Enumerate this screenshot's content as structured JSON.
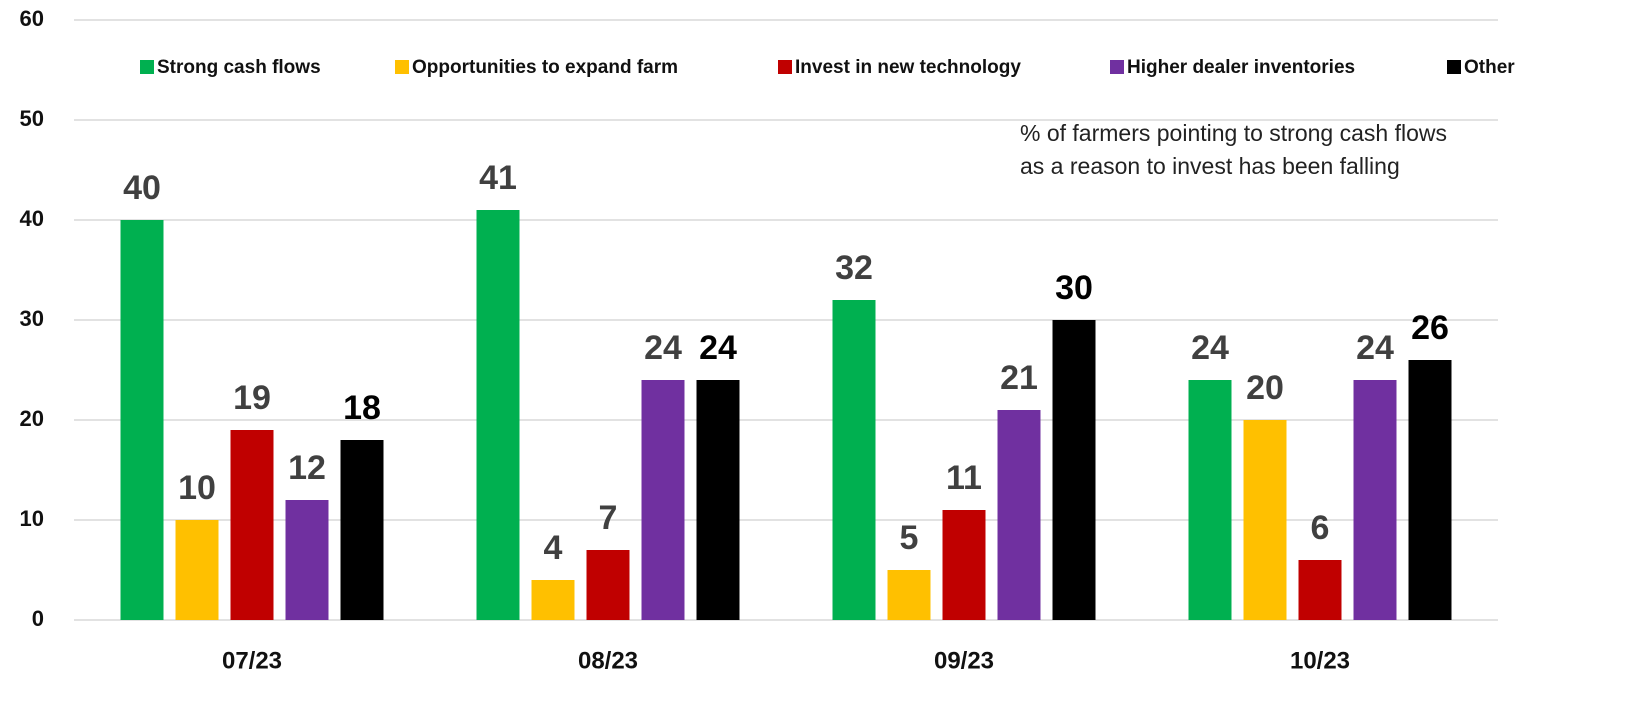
{
  "chart_data": {
    "type": "bar",
    "categories": [
      "07/23",
      "08/23",
      "09/23",
      "10/23"
    ],
    "series": [
      {
        "name": "Strong cash flows",
        "color": "#00b050",
        "label_color": "#404040",
        "values": [
          40,
          41,
          32,
          24
        ]
      },
      {
        "name": "Opportunities to expand farm",
        "color": "#ffc000",
        "label_color": "#404040",
        "values": [
          10,
          4,
          5,
          20
        ]
      },
      {
        "name": "Invest in new technology",
        "color": "#c00000",
        "label_color": "#404040",
        "values": [
          19,
          7,
          11,
          6
        ]
      },
      {
        "name": "Higher dealer inventories",
        "color": "#7030a0",
        "label_color": "#404040",
        "values": [
          12,
          24,
          21,
          24
        ]
      },
      {
        "name": "Other",
        "color": "#000000",
        "label_color": "#000000",
        "values": [
          18,
          24,
          30,
          26
        ]
      }
    ],
    "ylim": [
      0,
      60
    ],
    "yticks": [
      0,
      10,
      20,
      30,
      40,
      50,
      60
    ],
    "grid": true,
    "legend": "top",
    "annotations": [
      "% of farmers pointing to strong cash flows",
      "as a reason to invest has been falling"
    ]
  }
}
